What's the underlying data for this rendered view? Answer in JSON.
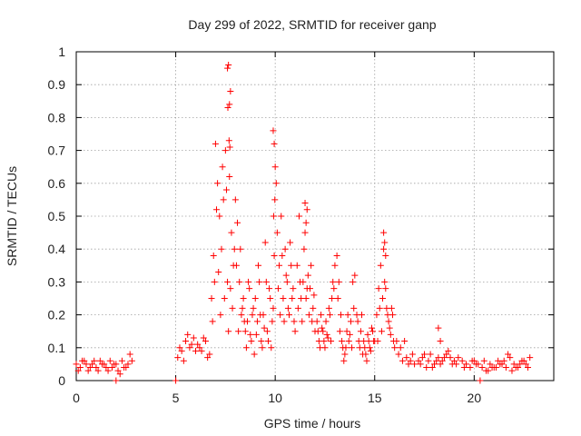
{
  "chart_data": {
    "type": "scatter",
    "title": "Day 299 of 2022, SRMTID for receiver ganp",
    "xlabel": "GPS time / hours",
    "ylabel": "SRMTID / TECUs",
    "xlim": [
      0,
      24
    ],
    "ylim": [
      0,
      1
    ],
    "xticks": [
      "0",
      "5",
      "10",
      "15",
      "20"
    ],
    "yticks": [
      "0",
      "0.1",
      "0.2",
      "0.3",
      "0.4",
      "0.5",
      "0.6",
      "0.7",
      "0.8",
      "0.9",
      "1"
    ],
    "grid": true,
    "marker": "+",
    "series": [
      {
        "name": "SRMTID",
        "color": "#ff0000",
        "x": [
          0.0,
          0.2,
          0.4,
          0.6,
          0.8,
          1.0,
          1.2,
          1.4,
          1.6,
          1.8,
          2.0,
          2.2,
          2.4,
          2.6,
          2.8,
          0.1,
          0.3,
          0.5,
          0.7,
          0.9,
          1.1,
          1.3,
          1.5,
          1.7,
          1.9,
          2.1,
          2.3,
          2.5,
          2.7,
          2.0,
          5.0,
          20.3,
          5.1,
          5.3,
          5.5,
          5.7,
          5.9,
          6.1,
          6.3,
          6.5,
          6.7,
          5.2,
          5.4,
          5.6,
          5.8,
          6.0,
          6.2,
          6.4,
          6.6,
          6.8,
          6.9,
          7.0,
          7.1,
          7.2,
          7.3,
          7.4,
          7.5,
          7.6,
          7.7,
          7.8,
          7.9,
          6.85,
          6.95,
          7.05,
          7.15,
          7.25,
          7.35,
          7.45,
          7.55,
          7.65,
          7.75,
          7.85,
          7.95,
          7.6,
          7.65,
          7.7,
          7.75,
          7.62,
          7.68,
          7.72,
          8.0,
          8.1,
          8.2,
          8.3,
          8.4,
          8.5,
          8.6,
          8.7,
          8.8,
          8.9,
          8.05,
          8.15,
          8.25,
          8.35,
          8.45,
          8.55,
          8.65,
          8.75,
          8.85,
          8.95,
          9.0,
          9.1,
          9.2,
          9.3,
          9.4,
          9.5,
          9.6,
          9.7,
          9.8,
          9.9,
          9.05,
          9.15,
          9.25,
          9.35,
          9.45,
          9.55,
          9.65,
          9.75,
          9.85,
          9.95,
          9.9,
          9.95,
          10.0,
          10.05,
          9.92,
          9.98,
          10.1,
          10.2,
          10.3,
          10.4,
          10.5,
          10.6,
          10.7,
          10.8,
          10.9,
          11.0,
          10.15,
          10.25,
          10.35,
          10.45,
          10.55,
          10.65,
          10.75,
          10.85,
          10.95,
          11.1,
          11.2,
          11.3,
          11.4,
          11.5,
          11.6,
          11.7,
          11.8,
          11.9,
          12.0,
          11.15,
          11.25,
          11.35,
          11.45,
          11.55,
          11.65,
          11.75,
          11.85,
          11.95,
          11.5,
          11.55,
          11.6,
          12.1,
          12.2,
          12.3,
          12.4,
          12.5,
          12.6,
          12.7,
          12.8,
          12.9,
          13.0,
          12.15,
          12.25,
          12.35,
          12.45,
          12.55,
          12.65,
          12.75,
          12.85,
          12.95,
          13.1,
          13.2,
          13.3,
          13.4,
          13.5,
          13.6,
          13.7,
          13.8,
          13.9,
          14.0,
          13.15,
          13.25,
          13.35,
          13.45,
          13.55,
          13.65,
          13.75,
          13.85,
          13.95,
          14.1,
          14.2,
          14.3,
          14.4,
          14.5,
          14.6,
          14.7,
          14.8,
          14.9,
          15.0,
          14.15,
          14.25,
          14.35,
          14.45,
          14.55,
          14.65,
          14.75,
          14.85,
          14.95,
          15.1,
          15.2,
          15.3,
          15.4,
          15.5,
          15.6,
          15.7,
          15.8,
          15.9,
          16.0,
          15.15,
          15.25,
          15.35,
          15.45,
          15.55,
          15.65,
          15.75,
          15.85,
          15.95,
          15.45,
          15.5,
          15.55,
          16.1,
          16.2,
          16.3,
          16.4,
          16.5,
          16.6,
          16.7,
          16.8,
          16.9,
          17.0,
          17.2,
          17.4,
          17.6,
          17.8,
          18.0,
          18.2,
          18.4,
          18.6,
          18.8,
          19.0,
          17.3,
          17.5,
          17.7,
          17.9,
          18.1,
          18.3,
          18.5,
          18.7,
          18.9,
          18.2,
          18.3,
          19.2,
          19.4,
          19.6,
          19.8,
          20.0,
          20.2,
          20.4,
          20.6,
          20.8,
          21.0,
          21.2,
          21.4,
          21.6,
          21.8,
          22.0,
          22.2,
          22.4,
          22.6,
          22.8,
          20.5,
          20.9,
          21.3,
          21.7,
          22.1,
          22.5,
          19.1,
          19.5,
          19.9,
          20.1,
          20.7,
          21.1,
          21.5,
          21.9,
          22.3,
          22.7
        ],
        "y": [
          0.05,
          0.04,
          0.06,
          0.03,
          0.05,
          0.04,
          0.06,
          0.05,
          0.03,
          0.04,
          0.05,
          0.02,
          0.04,
          0.05,
          0.06,
          0.03,
          0.06,
          0.05,
          0.04,
          0.06,
          0.03,
          0.05,
          0.04,
          0.06,
          0.05,
          0.03,
          0.06,
          0.04,
          0.08,
          0.0,
          0.0,
          0.0,
          0.07,
          0.09,
          0.12,
          0.1,
          0.13,
          0.11,
          0.09,
          0.12,
          0.08,
          0.1,
          0.06,
          0.14,
          0.11,
          0.09,
          0.1,
          0.13,
          0.07,
          0.25,
          0.38,
          0.72,
          0.6,
          0.5,
          0.4,
          0.55,
          0.7,
          0.3,
          0.62,
          0.45,
          0.35,
          0.18,
          0.3,
          0.52,
          0.33,
          0.2,
          0.65,
          0.25,
          0.58,
          0.15,
          0.28,
          0.22,
          0.4,
          0.95,
          0.96,
          0.84,
          0.88,
          0.83,
          0.73,
          0.71,
          0.55,
          0.48,
          0.3,
          0.2,
          0.25,
          0.15,
          0.18,
          0.28,
          0.12,
          0.22,
          0.35,
          0.15,
          0.4,
          0.22,
          0.18,
          0.1,
          0.3,
          0.14,
          0.2,
          0.08,
          0.25,
          0.18,
          0.3,
          0.12,
          0.2,
          0.42,
          0.15,
          0.28,
          0.1,
          0.22,
          0.14,
          0.35,
          0.2,
          0.1,
          0.16,
          0.3,
          0.12,
          0.25,
          0.18,
          0.38,
          0.76,
          0.72,
          0.65,
          0.6,
          0.5,
          0.55,
          0.45,
          0.35,
          0.5,
          0.25,
          0.4,
          0.3,
          0.2,
          0.35,
          0.28,
          0.15,
          0.28,
          0.2,
          0.38,
          0.18,
          0.32,
          0.22,
          0.42,
          0.25,
          0.18,
          0.35,
          0.5,
          0.25,
          0.3,
          0.45,
          0.28,
          0.2,
          0.35,
          0.22,
          0.15,
          0.22,
          0.3,
          0.18,
          0.4,
          0.25,
          0.32,
          0.28,
          0.18,
          0.26,
          0.54,
          0.48,
          0.52,
          0.18,
          0.12,
          0.2,
          0.15,
          0.1,
          0.14,
          0.22,
          0.12,
          0.3,
          0.35,
          0.15,
          0.1,
          0.16,
          0.12,
          0.18,
          0.13,
          0.2,
          0.25,
          0.28,
          0.38,
          0.3,
          0.2,
          0.1,
          0.08,
          0.15,
          0.12,
          0.18,
          0.3,
          0.32,
          0.25,
          0.15,
          0.12,
          0.06,
          0.1,
          0.2,
          0.14,
          0.1,
          0.22,
          0.2,
          0.12,
          0.15,
          0.08,
          0.1,
          0.06,
          0.12,
          0.09,
          0.15,
          0.12,
          0.18,
          0.1,
          0.2,
          0.12,
          0.08,
          0.14,
          0.1,
          0.16,
          0.12,
          0.2,
          0.28,
          0.35,
          0.25,
          0.3,
          0.22,
          0.18,
          0.14,
          0.2,
          0.1,
          0.12,
          0.22,
          0.15,
          0.4,
          0.28,
          0.2,
          0.16,
          0.22,
          0.12,
          0.45,
          0.42,
          0.38,
          0.12,
          0.08,
          0.1,
          0.06,
          0.12,
          0.07,
          0.05,
          0.06,
          0.08,
          0.05,
          0.06,
          0.07,
          0.04,
          0.08,
          0.05,
          0.07,
          0.06,
          0.08,
          0.07,
          0.06,
          0.05,
          0.08,
          0.06,
          0.04,
          0.06,
          0.05,
          0.07,
          0.09,
          0.05,
          0.16,
          0.12,
          0.07,
          0.06,
          0.05,
          0.04,
          0.06,
          0.05,
          0.04,
          0.03,
          0.05,
          0.04,
          0.06,
          0.05,
          0.04,
          0.07,
          0.05,
          0.04,
          0.06,
          0.05,
          0.07,
          0.06,
          0.04,
          0.05,
          0.08,
          0.04,
          0.06,
          0.05,
          0.04,
          0.06,
          0.05,
          0.03,
          0.04,
          0.06,
          0.03,
          0.05,
          0.04
        ]
      }
    ]
  }
}
